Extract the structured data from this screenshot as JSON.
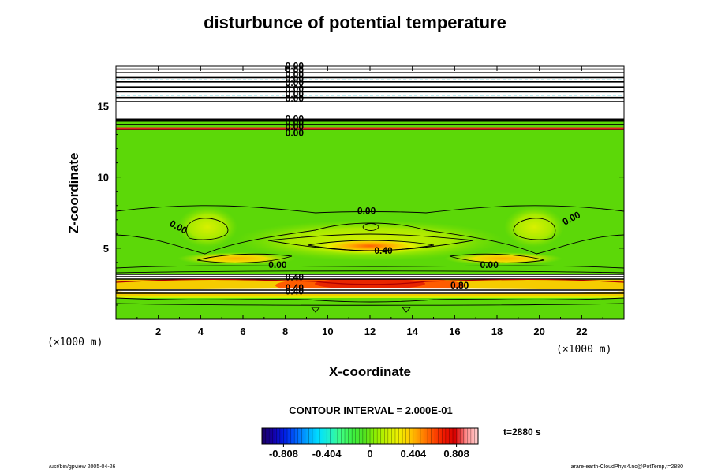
{
  "chart_data": {
    "type": "heatmap",
    "title": "disturbunce of potential temperature",
    "xlabel": "X-coordinate",
    "ylabel": "Z-coordinate",
    "x_unit": "(×1000 m)",
    "z_unit": "(×1000 m)",
    "xlim": [
      0,
      24
    ],
    "ylim": [
      0,
      17.8
    ],
    "x_ticks": [
      2,
      4,
      6,
      8,
      10,
      12,
      14,
      16,
      18,
      20,
      22
    ],
    "y_ticks": [
      5,
      10,
      15
    ],
    "contour_interval_text": "CONTOUR INTERVAL = 2.000E-01",
    "time_text": "t=2880 s",
    "colorbar": {
      "min": -1.01,
      "max": 1.01,
      "tick_values": [
        -0.808,
        -0.404,
        0,
        0.404,
        0.808
      ],
      "tick_labels": [
        "-0.808",
        "-0.404",
        "0",
        "0.404",
        "0.808"
      ],
      "colors": [
        "#1a0060",
        "#1400a8",
        "#0020e8",
        "#0064ff",
        "#00a8ff",
        "#00e0ff",
        "#20f0c8",
        "#40ff80",
        "#3cf040",
        "#50e020",
        "#90f000",
        "#c8f000",
        "#f0f000",
        "#ffc800",
        "#ff8c00",
        "#ff5000",
        "#f01800",
        "#d80000",
        "#ff9090",
        "#ffd0d0"
      ]
    },
    "contour_labels": [
      {
        "text": "0.00",
        "x": 8.0,
        "z": 17.6
      },
      {
        "text": "0.00",
        "x": 8.0,
        "z": 17.3
      },
      {
        "text": "0.00",
        "x": 8.0,
        "z": 17.0
      },
      {
        "text": "0.00",
        "x": 8.0,
        "z": 16.7
      },
      {
        "text": "0.00",
        "x": 8.0,
        "z": 16.4
      },
      {
        "text": "0.00",
        "x": 8.0,
        "z": 16.0
      },
      {
        "text": "0.00",
        "x": 8.0,
        "z": 15.6
      },
      {
        "text": "0.00",
        "x": 8.0,
        "z": 15.3
      },
      {
        "text": "0.00",
        "x": 8.0,
        "z": 13.9
      },
      {
        "text": "0.00",
        "x": 8.0,
        "z": 13.6
      },
      {
        "text": "0.00",
        "x": 8.0,
        "z": 13.3
      },
      {
        "text": "0.00",
        "x": 8.0,
        "z": 12.9
      },
      {
        "text": "0.00",
        "x": 11.4,
        "z": 7.4
      },
      {
        "text": "0.00",
        "x": 2.5,
        "z": 6.6
      },
      {
        "text": "0.00",
        "x": 21.2,
        "z": 6.6
      },
      {
        "text": "0.40",
        "x": 12.2,
        "z": 4.6
      },
      {
        "text": "0.00",
        "x": 7.2,
        "z": 3.6
      },
      {
        "text": "0.00",
        "x": 17.2,
        "z": 3.6
      },
      {
        "text": "0.40",
        "x": 8.0,
        "z": 2.75
      },
      {
        "text": "0.80",
        "x": 15.8,
        "z": 2.15
      },
      {
        "text": "0.40",
        "x": 8.0,
        "z": 2.0
      },
      {
        "text": "0.40",
        "x": 8.0,
        "z": 1.75
      }
    ],
    "background_level": 0.0,
    "features": [
      {
        "name": "upper-layers",
        "z_range": [
          13.6,
          17.8
        ],
        "value": "undefined"
      },
      {
        "name": "mid-warm-core",
        "x": 12,
        "z": 5.0,
        "value": 0.6
      },
      {
        "name": "left-warm-lobe",
        "x": 4.2,
        "z": 6.5,
        "value": 0.2
      },
      {
        "name": "right-warm-lobe",
        "x": 19.8,
        "z": 6.5,
        "value": 0.2
      },
      {
        "name": "left-shelf",
        "x": 6.0,
        "z": 4.2,
        "value": 0.4
      },
      {
        "name": "right-shelf",
        "x": 18.0,
        "z": 4.2,
        "value": 0.4
      },
      {
        "name": "lower-warm-band",
        "z_range": [
          1.6,
          3.0
        ],
        "value": 0.8
      },
      {
        "name": "lower-undefined-band",
        "z_range": [
          2.9,
          3.3
        ],
        "value": "undefined"
      },
      {
        "name": "lower-undefined-band-2",
        "z_range": [
          1.65,
          1.95
        ],
        "value": "undefined"
      }
    ]
  },
  "footer": {
    "left": "/usr/bin/gpview 2005-04-26",
    "right": "arare-earth-CloudPhys4.nc@PotTemp,t=2880"
  }
}
